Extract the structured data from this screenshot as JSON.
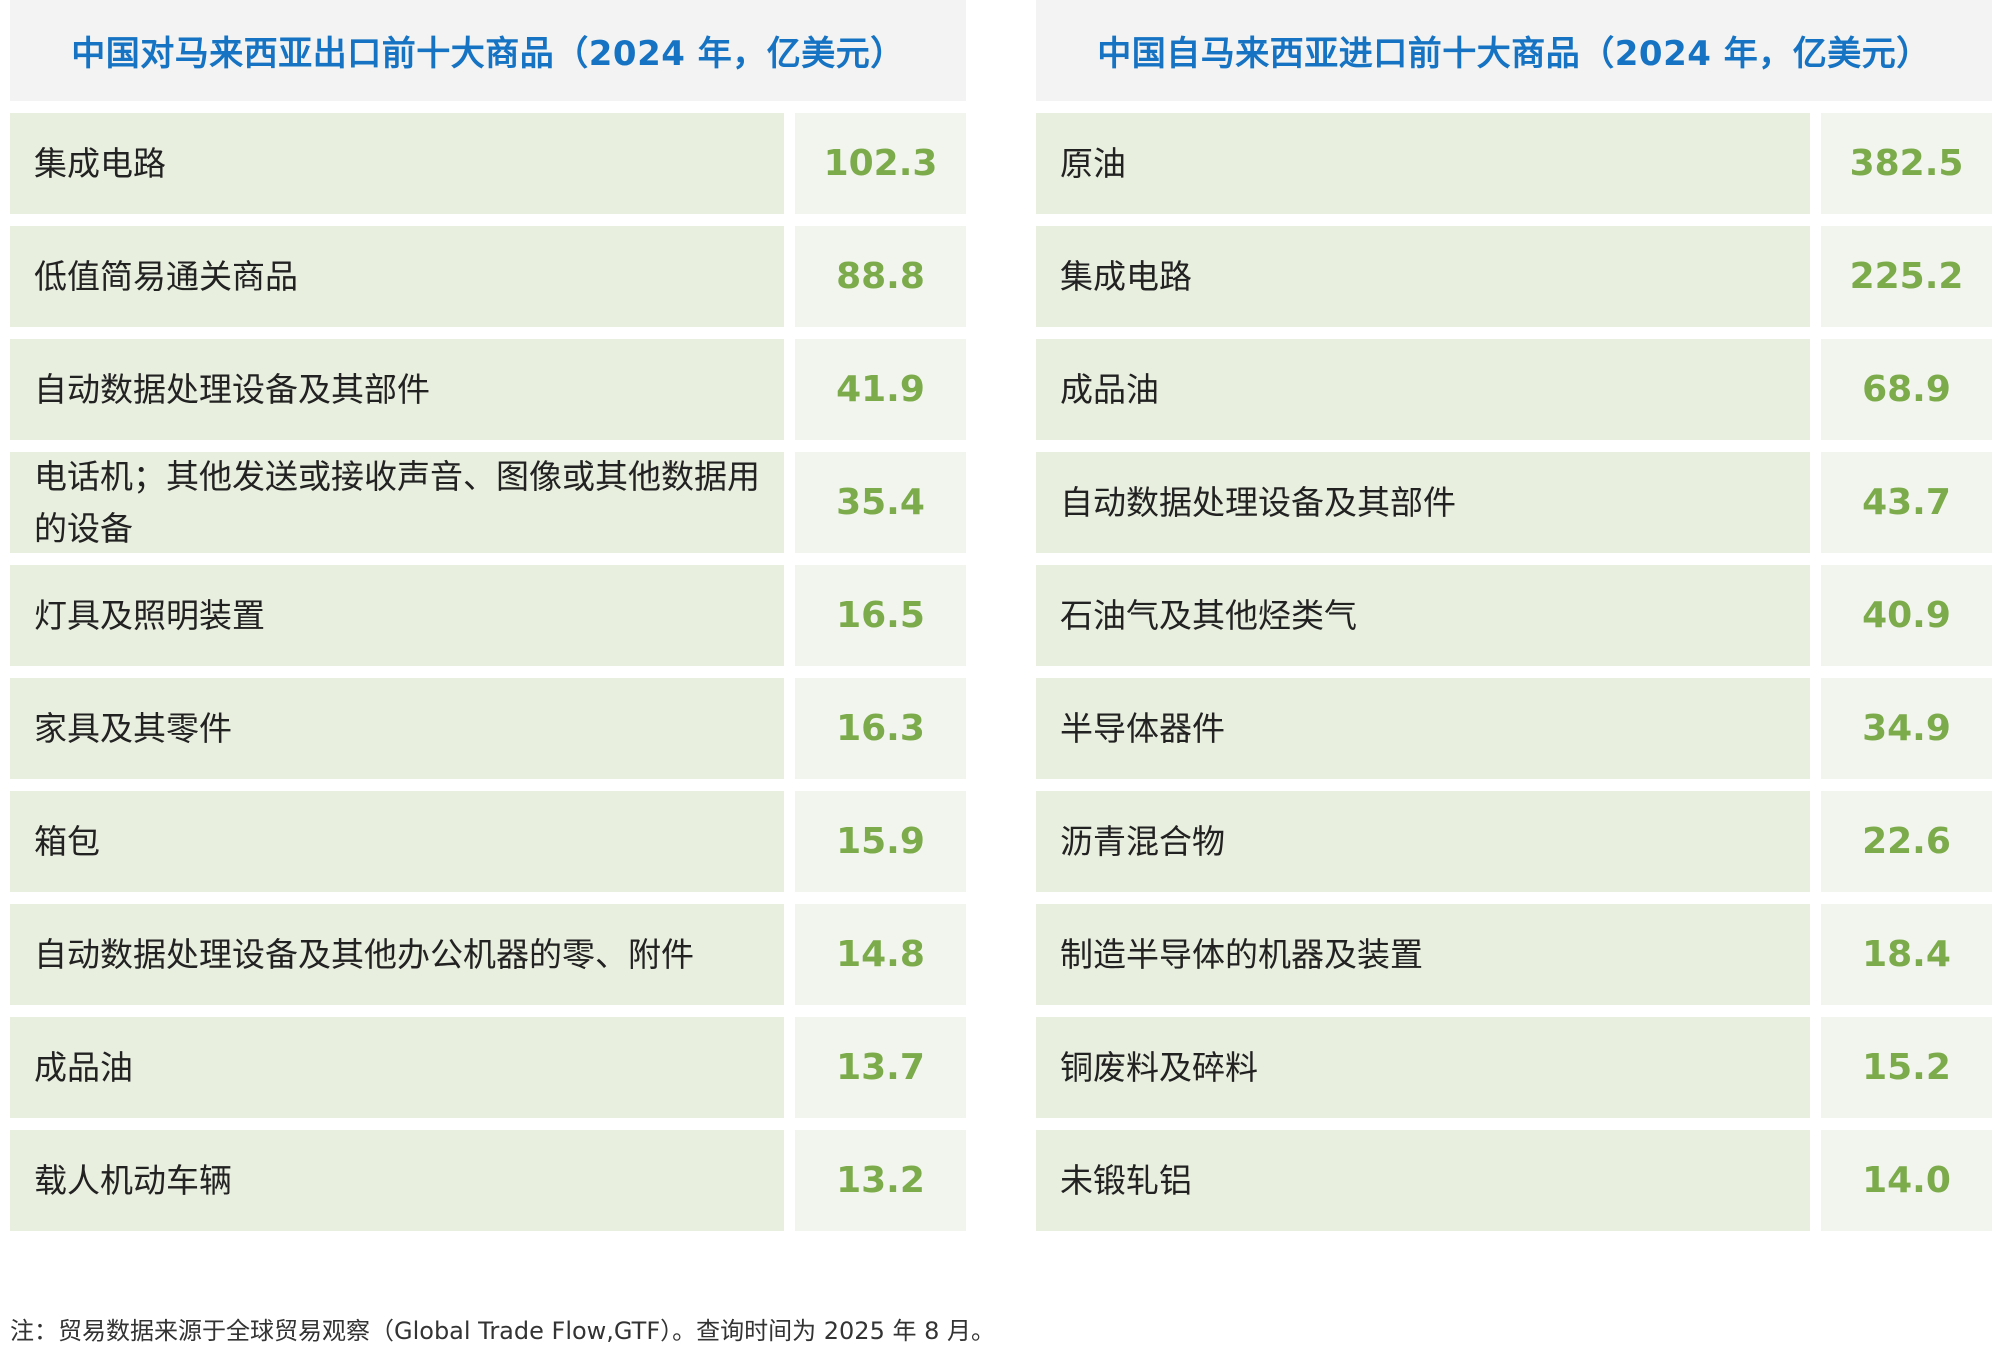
{
  "export_table": {
    "title": "中国对马来西亚出口前十大商品（2024 年，亿美元）",
    "rows": [
      {
        "name": "集成电路",
        "value": "102.3"
      },
      {
        "name": "低值简易通关商品",
        "value": "88.8"
      },
      {
        "name": "自动数据处理设备及其部件",
        "value": "41.9"
      },
      {
        "name": "电话机；其他发送或接收声音、图像或其他数据用的设备",
        "value": "35.4"
      },
      {
        "name": "灯具及照明装置",
        "value": "16.5"
      },
      {
        "name": "家具及其零件",
        "value": "16.3"
      },
      {
        "name": "箱包",
        "value": "15.9"
      },
      {
        "name": "自动数据处理设备及其他办公机器的零、附件",
        "value": "14.8"
      },
      {
        "name": "成品油",
        "value": "13.7"
      },
      {
        "name": "载人机动车辆",
        "value": "13.2"
      }
    ]
  },
  "import_table": {
    "title": "中国自马来西亚进口前十大商品（2024 年，亿美元）",
    "rows": [
      {
        "name": "原油",
        "value": "382.5"
      },
      {
        "name": "集成电路",
        "value": "225.2"
      },
      {
        "name": "成品油",
        "value": "68.9"
      },
      {
        "name": "自动数据处理设备及其部件",
        "value": "43.7"
      },
      {
        "name": "石油气及其他烃类气",
        "value": "40.9"
      },
      {
        "name": "半导体器件",
        "value": "34.9"
      },
      {
        "name": "沥青混合物",
        "value": "22.6"
      },
      {
        "name": "制造半导体的机器及装置",
        "value": "18.4"
      },
      {
        "name": "铜废料及碎料",
        "value": "15.2"
      },
      {
        "name": "未锻轧铝",
        "value": "14.0"
      }
    ]
  },
  "note": "注：贸易数据来源于全球贸易观察（Global Trade Flow,GTF）。查询时间为 2025 年 8 月。",
  "colors": {
    "title": "#1673c3",
    "value": "#7cab4b",
    "name_bg": "#e8efdf",
    "value_bg": "#f2f5ee",
    "header_bg": "#f2f3f2"
  }
}
